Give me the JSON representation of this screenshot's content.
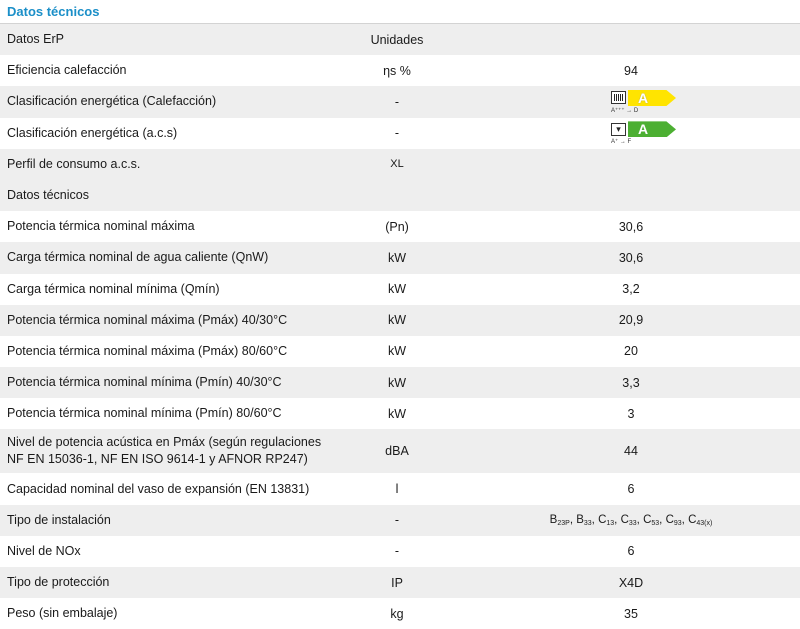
{
  "header": {
    "title": "Datos técnicos"
  },
  "rows": [
    {
      "label": "Datos ErP",
      "unit": "Unidades",
      "value": ""
    },
    {
      "label": "Eficiencia calefacción",
      "unit": "ηs %",
      "value": "94"
    },
    {
      "label": "Clasificación energética (Calefacción)",
      "unit": "-",
      "value": "A",
      "range": "A⁺⁺⁺ → D",
      "color": "#ffe400",
      "icon": "radiator-icon"
    },
    {
      "label": "Clasificación energética (a.c.s)",
      "unit": "-",
      "value": "A",
      "range": "A⁺ → F",
      "color": "#4caf32",
      "icon": "tap-icon"
    },
    {
      "label": "Perfil de consumo a.c.s.",
      "unit": "XL",
      "value": ""
    },
    {
      "label": "Datos técnicos",
      "unit": "",
      "value": ""
    },
    {
      "label": "Potencia térmica nominal máxima",
      "unit": "(Pn)",
      "value": "30,6"
    },
    {
      "label": "Carga térmica nominal de agua caliente (QnW)",
      "unit": "kW",
      "value": "30,6"
    },
    {
      "label": "Carga térmica nominal mínima (Qmín)",
      "unit": "kW",
      "value": "3,2"
    },
    {
      "label": "Potencia térmica nominal máxima (Pmáx) 40/30°C",
      "unit": "kW",
      "value": "20,9"
    },
    {
      "label": "Potencia térmica nominal máxima (Pmáx) 80/60°C",
      "unit": "kW",
      "value": "20"
    },
    {
      "label": "Potencia térmica nominal mínima (Pmín) 40/30°C",
      "unit": "kW",
      "value": "3,3"
    },
    {
      "label": "Potencia térmica nominal mínima (Pmín) 80/60°C",
      "unit": "kW",
      "value": "3"
    },
    {
      "label_line1": "Nivel de potencia acústica en Pmáx (según regulaciones",
      "label_line2": "NF EN 15036-1, NF EN ISO 9614-1 y AFNOR RP247)",
      "unit": "dBA",
      "value": "44"
    },
    {
      "label": "Capacidad nominal del vaso de expansión (EN 13831)",
      "unit": "l",
      "value": "6"
    },
    {
      "label": "Tipo de instalación",
      "unit": "-",
      "install": [
        {
          "base": "B",
          "sub": "23P"
        },
        {
          "base": "B",
          "sub": "33"
        },
        {
          "base": "C",
          "sub": "13"
        },
        {
          "base": "C",
          "sub": "33"
        },
        {
          "base": "C",
          "sub": "53"
        },
        {
          "base": "C",
          "sub": "93"
        },
        {
          "base": "C",
          "sub": "43(x)"
        }
      ]
    },
    {
      "label": "Nivel de NOx",
      "unit": "-",
      "value": "6"
    },
    {
      "label": "Tipo de protección",
      "unit": "IP",
      "value": "X4D"
    },
    {
      "label": "Peso (sin embalaje)",
      "unit": "kg",
      "value": "35"
    }
  ]
}
